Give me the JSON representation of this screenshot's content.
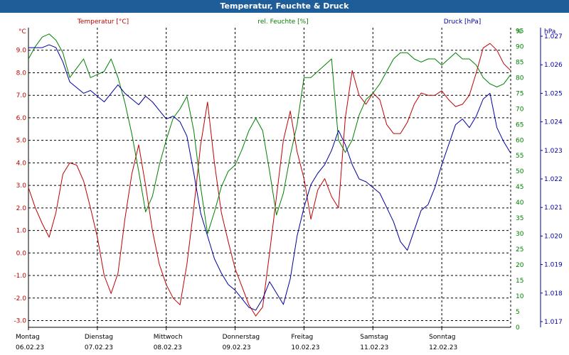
{
  "window": {
    "title": "Temperatur, Feuchte & Druck"
  },
  "colors": {
    "temperature": "#c00000",
    "humidity": "#008000",
    "pressure": "#0000a0",
    "grid": "#000000",
    "titlebar": "#1f5d99"
  },
  "chart_data": {
    "type": "line",
    "grid": true,
    "x_unit": "days",
    "x_range": [
      0,
      7
    ],
    "x_ticks": [
      {
        "day": "Montag",
        "date": "06.02.23"
      },
      {
        "day": "Dienstag",
        "date": "07.02.23"
      },
      {
        "day": "Mittwoch",
        "date": "08.02.23"
      },
      {
        "day": "Donnerstag",
        "date": "09.02.23"
      },
      {
        "day": "Freitag",
        "date": "10.02.23"
      },
      {
        "day": "Samstag",
        "date": "11.02.23"
      },
      {
        "day": "Sonntag",
        "date": "12.02.23"
      }
    ],
    "axes": {
      "temperature": {
        "unit": "°C",
        "label": "Temperatur [°C]",
        "range": [
          -3.3,
          10
        ],
        "ticks": [
          "9.0",
          "8.0",
          "7.0",
          "6.0",
          "5.0",
          "4.0",
          "3.0",
          "2.0",
          "1.0",
          "0.0",
          "-1.0",
          "-2.0",
          "-3.0"
        ],
        "tick_values": [
          9,
          8,
          7,
          6,
          5,
          4,
          3,
          2,
          1,
          0,
          -1,
          -2,
          -3
        ]
      },
      "humidity": {
        "unit": "%",
        "label": "rel. Feuchte [%]",
        "range": [
          0,
          96
        ],
        "ticks": [
          "95",
          "90",
          "85",
          "80",
          "75",
          "70",
          "65",
          "60",
          "55",
          "50",
          "45",
          "40",
          "35",
          "30",
          "25",
          "20",
          "15",
          "10",
          "5",
          "0"
        ],
        "tick_values": [
          95,
          90,
          85,
          80,
          75,
          70,
          65,
          60,
          55,
          50,
          45,
          40,
          35,
          30,
          25,
          20,
          15,
          10,
          5,
          0
        ]
      },
      "pressure": {
        "unit": "hPa",
        "label": "Druck [hPa]",
        "range": [
          1.0168,
          1.0273
        ],
        "ticks": [
          "1.027",
          "1.026",
          "1.025",
          "1.024",
          "1.023",
          "1.022",
          "1.021",
          "1.020",
          "1.019",
          "1.018",
          "1.017"
        ],
        "tick_values": [
          1.027,
          1.026,
          1.025,
          1.024,
          1.023,
          1.022,
          1.021,
          1.02,
          1.019,
          1.018,
          1.017
        ]
      }
    },
    "series": [
      {
        "name": "Temperatur [°C]",
        "axis": "temperature",
        "points": [
          [
            0,
            2.9
          ],
          [
            0.1,
            2.0
          ],
          [
            0.2,
            1.3
          ],
          [
            0.3,
            0.7
          ],
          [
            0.4,
            1.8
          ],
          [
            0.5,
            3.5
          ],
          [
            0.6,
            4.0
          ],
          [
            0.7,
            3.9
          ],
          [
            0.8,
            3.2
          ],
          [
            0.9,
            2.0
          ],
          [
            1.0,
            0.7
          ],
          [
            1.1,
            -1.0
          ],
          [
            1.2,
            -1.8
          ],
          [
            1.3,
            -0.9
          ],
          [
            1.4,
            1.5
          ],
          [
            1.5,
            3.5
          ],
          [
            1.6,
            4.8
          ],
          [
            1.7,
            3.0
          ],
          [
            1.8,
            1.0
          ],
          [
            1.9,
            -0.5
          ],
          [
            2.0,
            -1.4
          ],
          [
            2.1,
            -2.0
          ],
          [
            2.2,
            -2.3
          ],
          [
            2.3,
            -0.5
          ],
          [
            2.4,
            2.0
          ],
          [
            2.5,
            4.8
          ],
          [
            2.6,
            6.7
          ],
          [
            2.7,
            4.0
          ],
          [
            2.8,
            1.8
          ],
          [
            2.9,
            0.5
          ],
          [
            3.0,
            -0.7
          ],
          [
            3.1,
            -1.5
          ],
          [
            3.2,
            -2.3
          ],
          [
            3.3,
            -2.8
          ],
          [
            3.4,
            -2.4
          ],
          [
            3.5,
            0.0
          ],
          [
            3.6,
            2.5
          ],
          [
            3.7,
            5.0
          ],
          [
            3.8,
            6.3
          ],
          [
            3.9,
            4.5
          ],
          [
            4.0,
            3.3
          ],
          [
            4.1,
            1.5
          ],
          [
            4.2,
            2.8
          ],
          [
            4.3,
            3.3
          ],
          [
            4.4,
            2.5
          ],
          [
            4.5,
            2.0
          ],
          [
            4.6,
            6.0
          ],
          [
            4.7,
            8.1
          ],
          [
            4.8,
            7.0
          ],
          [
            4.9,
            6.6
          ],
          [
            5.0,
            7.1
          ],
          [
            5.1,
            6.8
          ],
          [
            5.2,
            5.7
          ],
          [
            5.3,
            5.3
          ],
          [
            5.4,
            5.3
          ],
          [
            5.5,
            5.8
          ],
          [
            5.6,
            6.6
          ],
          [
            5.7,
            7.1
          ],
          [
            5.8,
            7.0
          ],
          [
            5.9,
            7.0
          ],
          [
            6.0,
            7.2
          ],
          [
            6.1,
            6.8
          ],
          [
            6.2,
            6.5
          ],
          [
            6.3,
            6.6
          ],
          [
            6.4,
            7.0
          ],
          [
            6.5,
            8.0
          ],
          [
            6.6,
            9.1
          ],
          [
            6.7,
            9.3
          ],
          [
            6.8,
            9.0
          ],
          [
            6.9,
            8.4
          ],
          [
            7.0,
            8.1
          ]
        ]
      },
      {
        "name": "rel. Feuchte [%]",
        "axis": "humidity",
        "points": [
          [
            0,
            86
          ],
          [
            0.1,
            90
          ],
          [
            0.2,
            93
          ],
          [
            0.3,
            94
          ],
          [
            0.4,
            92
          ],
          [
            0.5,
            88
          ],
          [
            0.6,
            80
          ],
          [
            0.7,
            83
          ],
          [
            0.8,
            86
          ],
          [
            0.9,
            80
          ],
          [
            1.0,
            81
          ],
          [
            1.1,
            82
          ],
          [
            1.2,
            86
          ],
          [
            1.3,
            80
          ],
          [
            1.4,
            72
          ],
          [
            1.5,
            62
          ],
          [
            1.6,
            50
          ],
          [
            1.7,
            37
          ],
          [
            1.8,
            42
          ],
          [
            1.9,
            52
          ],
          [
            2.0,
            60
          ],
          [
            2.1,
            67
          ],
          [
            2.2,
            70
          ],
          [
            2.3,
            74
          ],
          [
            2.4,
            63
          ],
          [
            2.5,
            45
          ],
          [
            2.6,
            30
          ],
          [
            2.7,
            37
          ],
          [
            2.8,
            45
          ],
          [
            2.9,
            50
          ],
          [
            3.0,
            52
          ],
          [
            3.1,
            57
          ],
          [
            3.2,
            63
          ],
          [
            3.3,
            67
          ],
          [
            3.4,
            63
          ],
          [
            3.5,
            50
          ],
          [
            3.6,
            36
          ],
          [
            3.7,
            43
          ],
          [
            3.8,
            55
          ],
          [
            3.9,
            65
          ],
          [
            4.0,
            80
          ],
          [
            4.1,
            80
          ],
          [
            4.2,
            82
          ],
          [
            4.3,
            84
          ],
          [
            4.4,
            86
          ],
          [
            4.5,
            60
          ],
          [
            4.6,
            56
          ],
          [
            4.7,
            60
          ],
          [
            4.8,
            68
          ],
          [
            4.9,
            73
          ],
          [
            5.0,
            75
          ],
          [
            5.1,
            78
          ],
          [
            5.2,
            82
          ],
          [
            5.3,
            86
          ],
          [
            5.4,
            88
          ],
          [
            5.5,
            88
          ],
          [
            5.6,
            86
          ],
          [
            5.7,
            85
          ],
          [
            5.8,
            86
          ],
          [
            5.9,
            86
          ],
          [
            6.0,
            84
          ],
          [
            6.1,
            86
          ],
          [
            6.2,
            88
          ],
          [
            6.3,
            86
          ],
          [
            6.4,
            86
          ],
          [
            6.5,
            84
          ],
          [
            6.6,
            80
          ],
          [
            6.7,
            78
          ],
          [
            6.8,
            77
          ],
          [
            6.9,
            78
          ],
          [
            7.0,
            81
          ]
        ]
      },
      {
        "name": "Druck [hPa]",
        "axis": "pressure",
        "points": [
          [
            0,
            1.0266
          ],
          [
            0.1,
            1.0266
          ],
          [
            0.2,
            1.0266
          ],
          [
            0.3,
            1.0267
          ],
          [
            0.4,
            1.0266
          ],
          [
            0.5,
            1.0261
          ],
          [
            0.6,
            1.0254
          ],
          [
            0.7,
            1.0252
          ],
          [
            0.8,
            1.025
          ],
          [
            0.9,
            1.0251
          ],
          [
            1.0,
            1.0249
          ],
          [
            1.1,
            1.0247
          ],
          [
            1.2,
            1.025
          ],
          [
            1.3,
            1.0253
          ],
          [
            1.4,
            1.025
          ],
          [
            1.5,
            1.0248
          ],
          [
            1.6,
            1.0246
          ],
          [
            1.7,
            1.0249
          ],
          [
            1.8,
            1.0247
          ],
          [
            1.9,
            1.0244
          ],
          [
            2.0,
            1.0241
          ],
          [
            2.1,
            1.0242
          ],
          [
            2.2,
            1.024
          ],
          [
            2.3,
            1.0235
          ],
          [
            2.4,
            1.0222
          ],
          [
            2.5,
            1.0208
          ],
          [
            2.6,
            1.02
          ],
          [
            2.7,
            1.0192
          ],
          [
            2.8,
            1.0187
          ],
          [
            2.9,
            1.0183
          ],
          [
            3.0,
            1.0181
          ],
          [
            3.1,
            1.0178
          ],
          [
            3.2,
            1.0175
          ],
          [
            3.3,
            1.0174
          ],
          [
            3.4,
            1.0178
          ],
          [
            3.5,
            1.0184
          ],
          [
            3.6,
            1.018
          ],
          [
            3.7,
            1.0176
          ],
          [
            3.8,
            1.0185
          ],
          [
            3.9,
            1.02
          ],
          [
            4.0,
            1.021
          ],
          [
            4.1,
            1.0218
          ],
          [
            4.2,
            1.0222
          ],
          [
            4.3,
            1.0225
          ],
          [
            4.4,
            1.023
          ],
          [
            4.5,
            1.0237
          ],
          [
            4.6,
            1.0232
          ],
          [
            4.7,
            1.0225
          ],
          [
            4.8,
            1.022
          ],
          [
            4.9,
            1.0219
          ],
          [
            5.0,
            1.0217
          ],
          [
            5.1,
            1.0215
          ],
          [
            5.2,
            1.021
          ],
          [
            5.3,
            1.0205
          ],
          [
            5.4,
            1.0198
          ],
          [
            5.5,
            1.0195
          ],
          [
            5.6,
            1.0202
          ],
          [
            5.7,
            1.0209
          ],
          [
            5.8,
            1.0211
          ],
          [
            5.9,
            1.0217
          ],
          [
            6.0,
            1.0225
          ],
          [
            6.1,
            1.0232
          ],
          [
            6.2,
            1.0239
          ],
          [
            6.3,
            1.0241
          ],
          [
            6.4,
            1.0238
          ],
          [
            6.5,
            1.0242
          ],
          [
            6.6,
            1.0248
          ],
          [
            6.7,
            1.025
          ],
          [
            6.8,
            1.0238
          ],
          [
            6.9,
            1.0233
          ],
          [
            7.0,
            1.0229
          ]
        ]
      }
    ]
  }
}
